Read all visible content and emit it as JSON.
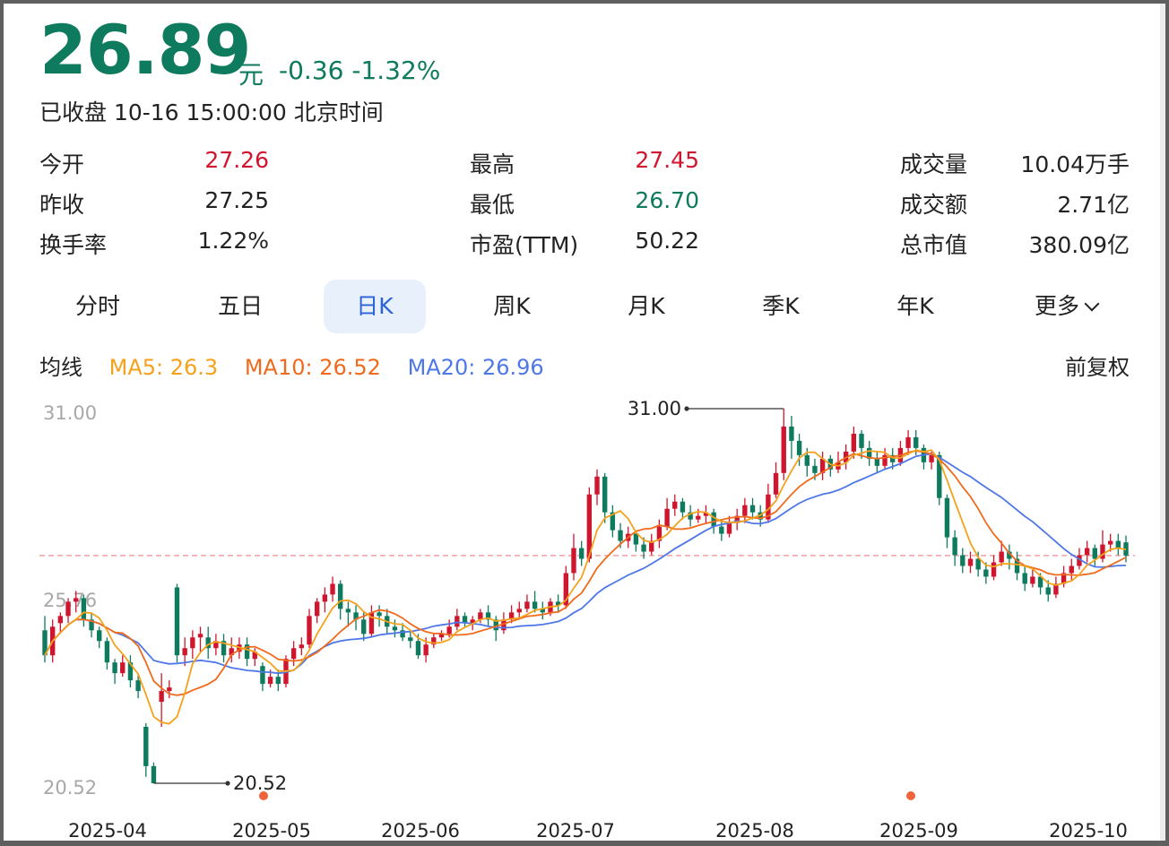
{
  "quote": {
    "price": "26.89",
    "unit": "元",
    "change": "-0.36",
    "change_pct": "-1.32%",
    "status": "已收盘 10-16 15:00:00 北京时间"
  },
  "stats": {
    "open_label": "今开",
    "open_value": "27.26",
    "prev_close_label": "昨收",
    "prev_close_value": "27.25",
    "turnover_label": "换手率",
    "turnover_value": "1.22%",
    "high_label": "最高",
    "high_value": "27.45",
    "low_label": "最低",
    "low_value": "26.70",
    "pe_label": "市盈(TTM)",
    "pe_value": "50.22",
    "volume_label": "成交量",
    "volume_value": "10.04万手",
    "amount_label": "成交额",
    "amount_value": "2.71亿",
    "mktcap_label": "总市值",
    "mktcap_value": "380.09亿"
  },
  "tabs": [
    {
      "label": "分时"
    },
    {
      "label": "五日"
    },
    {
      "label": "日K"
    },
    {
      "label": "周K"
    },
    {
      "label": "月K"
    },
    {
      "label": "季K"
    },
    {
      "label": "年K"
    },
    {
      "label": "更多"
    }
  ],
  "active_tab": "日K",
  "ma": {
    "title": "均线",
    "ma5": "MA5: 26.3",
    "ma10": "MA10: 26.52",
    "ma20": "MA20: 26.96",
    "adjust": "前复权"
  },
  "colors": {
    "up": "#d0162e",
    "down": "#0e7a5e",
    "ma5": "#f4a21c",
    "ma10": "#f06a1c",
    "ma20": "#4e77e8",
    "ref_line": "#f0a0a0"
  },
  "chart_data": {
    "type": "candlestick",
    "y_ticks": [
      "31.00",
      "25.76",
      "20.52"
    ],
    "ylim": [
      20.52,
      31.0
    ],
    "x_ticks": [
      "2025-04",
      "2025-05",
      "2025-06",
      "2025-07",
      "2025-08",
      "2025-09",
      "2025-10"
    ],
    "max_label": "31.00",
    "min_label": "20.52",
    "reference_price": 26.89,
    "candles": [
      [
        24.8,
        24.1,
        25.2,
        23.9
      ],
      [
        24.1,
        24.9,
        25.1,
        23.9
      ],
      [
        25.0,
        25.2,
        25.3,
        24.7
      ],
      [
        25.2,
        25.6,
        25.7,
        25.0
      ],
      [
        25.6,
        25.7,
        25.9,
        25.3
      ],
      [
        25.7,
        25.1,
        25.8,
        24.9
      ],
      [
        25.1,
        24.8,
        25.3,
        24.6
      ],
      [
        24.8,
        24.5,
        24.9,
        24.3
      ],
      [
        24.5,
        23.9,
        24.6,
        23.7
      ],
      [
        23.9,
        23.6,
        24.0,
        23.3
      ],
      [
        23.6,
        23.9,
        24.1,
        23.5
      ],
      [
        23.9,
        23.4,
        24.1,
        23.2
      ],
      [
        23.4,
        23.1,
        23.6,
        22.9
      ],
      [
        22.1,
        21.0,
        22.2,
        20.7
      ],
      [
        21.0,
        20.52,
        21.1,
        20.52
      ],
      [
        22.8,
        23.1,
        23.6,
        22.1
      ],
      [
        23.1,
        23.2,
        23.4,
        22.9
      ],
      [
        26.0,
        24.1,
        26.1,
        23.9
      ],
      [
        24.1,
        24.3,
        24.6,
        23.8
      ],
      [
        24.3,
        24.6,
        24.8,
        24.0
      ],
      [
        24.6,
        24.7,
        24.9,
        24.2
      ],
      [
        24.6,
        24.3,
        24.9,
        24.0
      ],
      [
        24.3,
        24.5,
        24.7,
        24.1
      ],
      [
        24.5,
        24.1,
        24.7,
        23.9
      ],
      [
        24.1,
        24.3,
        24.6,
        23.9
      ],
      [
        24.2,
        24.4,
        24.6,
        24.0
      ],
      [
        24.4,
        24.0,
        24.6,
        23.8
      ],
      [
        24.0,
        24.2,
        24.3,
        23.8
      ],
      [
        23.8,
        23.3,
        23.9,
        23.1
      ],
      [
        23.3,
        23.5,
        23.7,
        23.2
      ],
      [
        23.5,
        23.3,
        23.7,
        23.1
      ],
      [
        23.3,
        24.0,
        24.1,
        23.2
      ],
      [
        24.0,
        24.3,
        24.5,
        23.8
      ],
      [
        24.3,
        24.4,
        24.6,
        24.1
      ],
      [
        24.4,
        25.2,
        25.4,
        24.3
      ],
      [
        25.2,
        25.6,
        25.7,
        25.0
      ],
      [
        25.6,
        25.8,
        26.0,
        25.3
      ],
      [
        25.8,
        26.1,
        26.3,
        25.6
      ],
      [
        26.1,
        25.4,
        26.2,
        25.1
      ],
      [
        25.4,
        25.3,
        25.6,
        24.9
      ],
      [
        25.3,
        25.1,
        25.5,
        24.8
      ],
      [
        25.1,
        24.7,
        25.3,
        24.5
      ],
      [
        24.7,
        25.3,
        25.5,
        24.6
      ],
      [
        25.3,
        25.2,
        25.5,
        24.9
      ],
      [
        25.2,
        24.9,
        25.4,
        24.7
      ],
      [
        24.9,
        24.8,
        25.1,
        24.6
      ],
      [
        24.8,
        24.6,
        25.0,
        24.5
      ],
      [
        24.6,
        24.5,
        24.8,
        24.3
      ],
      [
        24.5,
        24.1,
        24.7,
        24.0
      ],
      [
        24.1,
        24.4,
        24.6,
        23.9
      ],
      [
        24.4,
        24.6,
        24.7,
        24.3
      ],
      [
        24.6,
        24.7,
        24.8,
        24.5
      ],
      [
        24.7,
        24.9,
        25.1,
        24.6
      ],
      [
        24.9,
        25.2,
        25.4,
        24.8
      ],
      [
        25.2,
        25.0,
        25.3,
        24.9
      ],
      [
        25.0,
        25.1,
        25.2,
        24.8
      ],
      [
        25.1,
        25.3,
        25.4,
        25.0
      ],
      [
        25.3,
        25.1,
        25.5,
        24.9
      ],
      [
        25.1,
        24.8,
        25.2,
        24.5
      ],
      [
        24.8,
        25.1,
        25.3,
        24.7
      ],
      [
        25.1,
        25.3,
        25.5,
        25.0
      ],
      [
        25.3,
        25.4,
        25.6,
        25.1
      ],
      [
        25.4,
        25.6,
        25.8,
        25.3
      ],
      [
        25.6,
        25.4,
        25.9,
        25.3
      ],
      [
        25.4,
        25.3,
        25.6,
        25.1
      ],
      [
        25.3,
        25.6,
        25.7,
        25.2
      ],
      [
        25.6,
        25.5,
        25.8,
        25.3
      ],
      [
        25.5,
        26.4,
        26.6,
        25.4
      ],
      [
        26.4,
        27.1,
        27.5,
        26.2
      ],
      [
        27.1,
        26.8,
        27.3,
        26.6
      ],
      [
        26.8,
        28.6,
        28.8,
        26.7
      ],
      [
        28.6,
        29.1,
        29.3,
        28.3
      ],
      [
        29.1,
        28.1,
        29.2,
        27.8
      ],
      [
        28.1,
        27.6,
        28.3,
        27.4
      ],
      [
        27.6,
        27.3,
        27.8,
        27.1
      ],
      [
        27.3,
        27.5,
        27.7,
        27.1
      ],
      [
        27.5,
        27.2,
        27.6,
        27.0
      ],
      [
        27.2,
        27.0,
        27.4,
        26.8
      ],
      [
        27.0,
        27.3,
        27.5,
        26.9
      ],
      [
        27.3,
        27.7,
        27.9,
        27.1
      ],
      [
        27.7,
        28.2,
        28.5,
        27.6
      ],
      [
        28.2,
        28.4,
        28.6,
        28.0
      ],
      [
        28.4,
        28.1,
        28.5,
        27.9
      ],
      [
        28.1,
        27.9,
        28.3,
        27.7
      ],
      [
        27.9,
        28.0,
        28.2,
        27.8
      ],
      [
        28.0,
        28.1,
        28.3,
        27.8
      ],
      [
        28.1,
        27.7,
        28.2,
        27.5
      ],
      [
        27.7,
        27.5,
        27.9,
        27.3
      ],
      [
        27.5,
        27.8,
        28.0,
        27.4
      ],
      [
        27.8,
        28.0,
        28.2,
        27.6
      ],
      [
        28.0,
        28.3,
        28.5,
        27.8
      ],
      [
        28.3,
        28.1,
        28.5,
        27.9
      ],
      [
        28.1,
        27.9,
        28.3,
        27.7
      ],
      [
        27.9,
        28.6,
        28.9,
        27.8
      ],
      [
        28.6,
        29.2,
        29.5,
        28.5
      ],
      [
        29.2,
        30.5,
        31.0,
        29.0
      ],
      [
        30.5,
        30.1,
        30.8,
        29.6
      ],
      [
        30.1,
        29.7,
        30.3,
        29.4
      ],
      [
        29.7,
        29.4,
        29.9,
        29.1
      ],
      [
        29.4,
        29.2,
        29.6,
        29.0
      ],
      [
        29.2,
        29.6,
        29.8,
        29.0
      ],
      [
        29.6,
        29.3,
        29.7,
        29.1
      ],
      [
        29.3,
        29.5,
        29.8,
        29.2
      ],
      [
        29.5,
        29.8,
        30.0,
        29.3
      ],
      [
        29.8,
        30.3,
        30.5,
        29.6
      ],
      [
        30.3,
        29.9,
        30.4,
        29.6
      ],
      [
        29.9,
        29.6,
        30.1,
        29.4
      ],
      [
        29.6,
        29.4,
        29.8,
        29.2
      ],
      [
        29.4,
        29.7,
        29.9,
        29.3
      ],
      [
        29.7,
        29.5,
        29.9,
        29.3
      ],
      [
        29.5,
        29.9,
        30.1,
        29.4
      ],
      [
        29.9,
        30.2,
        30.4,
        29.7
      ],
      [
        30.2,
        29.9,
        30.4,
        29.7
      ],
      [
        29.9,
        29.5,
        30.0,
        29.3
      ],
      [
        29.5,
        29.7,
        29.8,
        29.3
      ],
      [
        29.7,
        28.5,
        29.8,
        28.3
      ],
      [
        28.5,
        27.4,
        28.6,
        27.1
      ],
      [
        27.4,
        26.9,
        27.6,
        26.6
      ],
      [
        26.9,
        26.6,
        27.1,
        26.4
      ],
      [
        26.6,
        26.8,
        27.0,
        26.4
      ],
      [
        26.8,
        26.5,
        27.0,
        26.3
      ],
      [
        26.5,
        26.3,
        26.7,
        26.1
      ],
      [
        26.3,
        26.7,
        26.9,
        26.2
      ],
      [
        26.7,
        27.0,
        27.3,
        26.6
      ],
      [
        27.0,
        26.8,
        27.2,
        26.5
      ],
      [
        26.8,
        26.4,
        27.0,
        26.2
      ],
      [
        26.4,
        26.1,
        26.6,
        25.9
      ],
      [
        26.1,
        26.3,
        26.5,
        26.0
      ],
      [
        26.3,
        26.0,
        26.4,
        25.8
      ],
      [
        26.0,
        25.8,
        26.2,
        25.6
      ],
      [
        25.8,
        26.1,
        26.3,
        25.7
      ],
      [
        26.1,
        26.4,
        26.6,
        26.0
      ],
      [
        26.4,
        26.6,
        26.8,
        26.2
      ],
      [
        26.6,
        26.9,
        27.1,
        26.5
      ],
      [
        26.9,
        27.1,
        27.3,
        26.7
      ],
      [
        27.1,
        26.8,
        27.2,
        26.6
      ],
      [
        26.8,
        27.2,
        27.6,
        26.7
      ],
      [
        27.2,
        27.3,
        27.5,
        27.0
      ],
      [
        27.3,
        27.1,
        27.5,
        26.9
      ],
      [
        27.26,
        26.89,
        27.45,
        26.7
      ]
    ],
    "ma5_last": 26.3,
    "ma10_last": 26.52,
    "ma20_last": 26.96
  }
}
